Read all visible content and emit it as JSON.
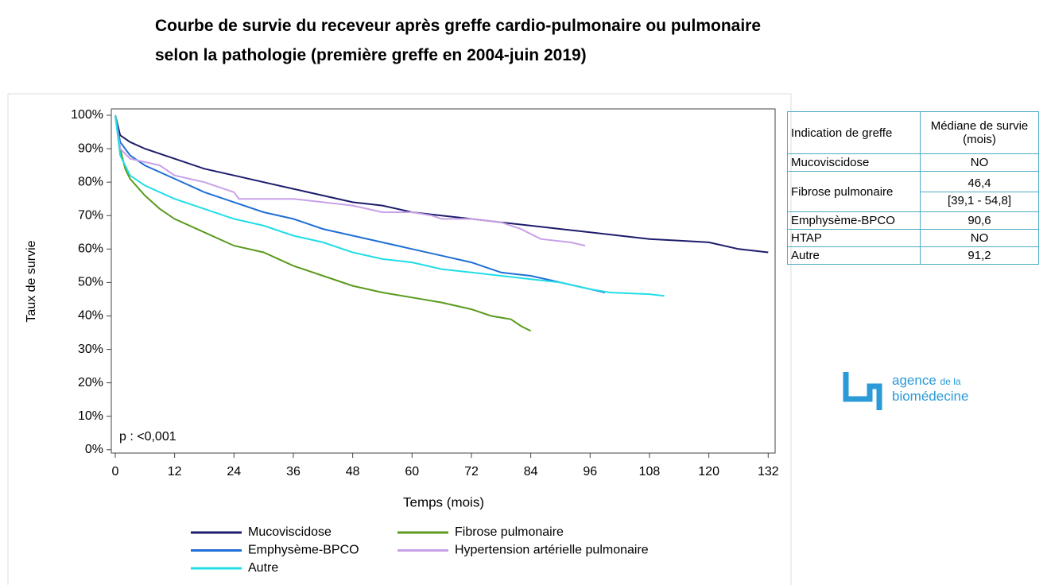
{
  "chart_data": {
    "type": "line",
    "title": "Courbe de survie du receveur après greffe cardio-pulmonaire ou pulmonaire selon la pathologie (première greffe en 2004-juin 2019)",
    "x_label": "Temps (mois)",
    "y_label": "Taux de survie",
    "annotation": "p : <0,001",
    "xlim": [
      -0.8,
      133.4
    ],
    "ylim": [
      -1,
      101.9
    ],
    "xticks": [
      0,
      12,
      24,
      36,
      48,
      60,
      72,
      84,
      96,
      108,
      120,
      132
    ],
    "yticks": [
      {
        "value": 0,
        "label": "0%"
      },
      {
        "value": 10,
        "label": "10%"
      },
      {
        "value": 20,
        "label": "20%"
      },
      {
        "value": 30,
        "label": "30%"
      },
      {
        "value": 40,
        "label": "40%"
      },
      {
        "value": 50,
        "label": "50%"
      },
      {
        "value": 60,
        "label": "60%"
      },
      {
        "value": 70,
        "label": "70%"
      },
      {
        "value": 80,
        "label": "80%"
      },
      {
        "value": 90,
        "label": "90%"
      },
      {
        "value": 100,
        "label": "100%"
      }
    ],
    "series": [
      {
        "name": "Mucoviscidose",
        "color": "#1c1c6b",
        "x": [
          0,
          1,
          3,
          6,
          12,
          18,
          24,
          30,
          36,
          42,
          48,
          54,
          60,
          66,
          72,
          78,
          84,
          90,
          96,
          102,
          108,
          114,
          120,
          126,
          132
        ],
        "values": [
          100,
          94,
          92,
          90,
          87,
          84,
          82,
          80,
          78,
          76,
          74,
          73,
          71,
          70,
          69,
          68,
          67,
          66,
          65,
          64,
          63,
          62.5,
          62,
          60,
          59
        ]
      },
      {
        "name": "Fibrose pulmonaire",
        "color": "#5b9a1e",
        "x": [
          0,
          1,
          2,
          3,
          6,
          9,
          12,
          18,
          24,
          30,
          36,
          42,
          48,
          54,
          60,
          66,
          72,
          76,
          80,
          82,
          84
        ],
        "values": [
          100,
          90,
          84,
          81,
          76,
          72,
          69,
          65,
          61,
          59,
          55,
          52,
          49,
          47,
          45.5,
          44,
          42,
          40,
          39,
          37,
          35.5
        ]
      },
      {
        "name": "Emphysème-BPCO",
        "color": "#1f6fd6",
        "x": [
          0,
          1,
          3,
          6,
          12,
          18,
          24,
          30,
          36,
          42,
          48,
          54,
          60,
          66,
          72,
          78,
          84,
          90,
          96,
          99
        ],
        "values": [
          100,
          92,
          88,
          85,
          81,
          77,
          74,
          71,
          69,
          66,
          64,
          62,
          60,
          58,
          56,
          53,
          52,
          50,
          48,
          47
        ]
      },
      {
        "name": "Hypertension artérielle pulmonaire",
        "color": "#c8a0e8",
        "x": [
          0,
          1,
          3,
          6,
          9,
          12,
          18,
          24,
          25,
          36,
          42,
          48,
          54,
          60,
          64,
          66,
          72,
          78,
          82,
          86,
          92,
          95
        ],
        "values": [
          100,
          90,
          87,
          86,
          85,
          82,
          80,
          77,
          75,
          75,
          74,
          73,
          71,
          71,
          70,
          69,
          69,
          68,
          66,
          63,
          62,
          61
        ]
      },
      {
        "name": "Autre",
        "color": "#22dde6",
        "x": [
          0,
          1,
          3,
          6,
          12,
          18,
          24,
          30,
          36,
          42,
          48,
          54,
          60,
          66,
          72,
          78,
          84,
          90,
          96,
          100,
          108,
          111
        ],
        "values": [
          100,
          88,
          82,
          79,
          75,
          72,
          69,
          67,
          64,
          62,
          59,
          57,
          56,
          54,
          53,
          52,
          51,
          50,
          48,
          47,
          46.5,
          46
        ]
      }
    ]
  },
  "table": {
    "header": [
      "Indication de greffe",
      "Médiane de survie (mois)"
    ],
    "rows": [
      {
        "label": "Mucoviscidose",
        "values": [
          "NO"
        ]
      },
      {
        "label": "Fibrose pulmonaire",
        "values": [
          "46,4",
          "[39,1 - 54,8]"
        ]
      },
      {
        "label": "Emphysème-BPCO",
        "values": [
          "90,6"
        ]
      },
      {
        "label": "HTAP",
        "values": [
          "NO"
        ]
      },
      {
        "label": "Autre",
        "values": [
          "91,2"
        ]
      }
    ]
  },
  "logo": {
    "line1": "agence",
    "line1_small": "de la",
    "line2": "biomédecine"
  }
}
